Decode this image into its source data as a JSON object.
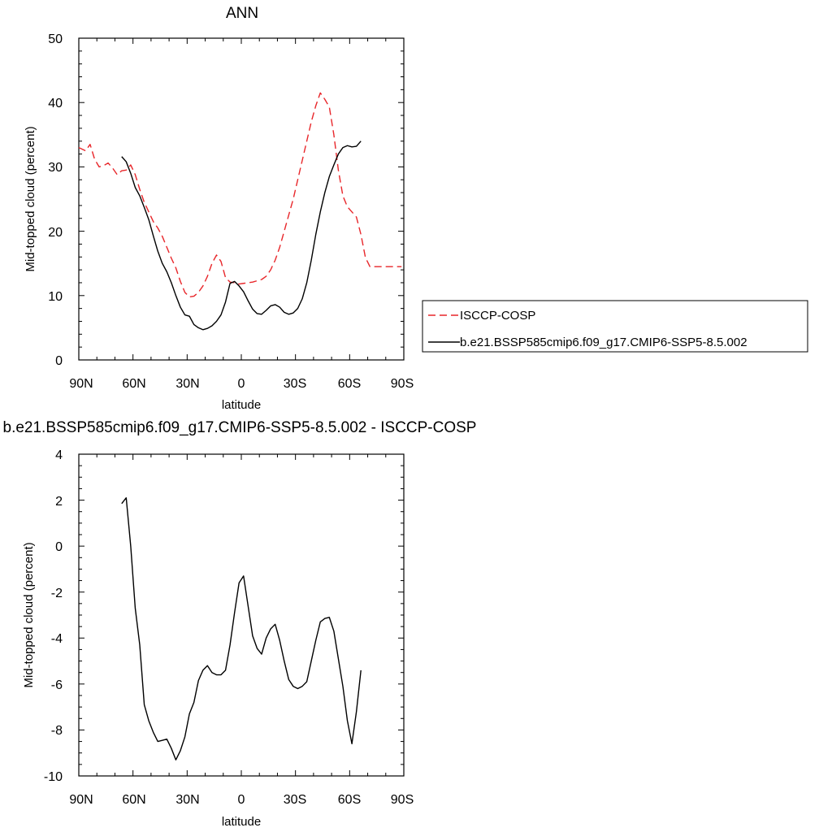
{
  "chart_data": [
    {
      "type": "line",
      "title": "ANN",
      "xlabel": "latitude",
      "ylabel": "Mid-topped cloud (percent)",
      "xlim": [
        90,
        -90
      ],
      "ylim": [
        0,
        50
      ],
      "x_ticks": [
        90,
        60,
        30,
        0,
        -30,
        -60,
        -90
      ],
      "x_tick_labels": [
        "90N",
        "60N",
        "30N",
        "0",
        "30S",
        "60S",
        "90S"
      ],
      "y_ticks": [
        0,
        10,
        20,
        30,
        40,
        50
      ],
      "y_tick_labels": [
        "0",
        "10",
        "20",
        "30",
        "40",
        "50"
      ],
      "grid": false,
      "legend": "right",
      "series": [
        {
          "name": "ISCCP-COSP",
          "color": "#e8262a",
          "dash": "dashed",
          "x": [
            90,
            86.25,
            83.75,
            81.25,
            78.75,
            76.25,
            73.75,
            71.25,
            68.75,
            66.25,
            63.75,
            61.25,
            58.75,
            56.25,
            53.75,
            51.25,
            48.75,
            46.25,
            43.75,
            41.25,
            38.75,
            36.25,
            33.75,
            31.25,
            28.75,
            26.25,
            23.75,
            21.25,
            18.75,
            16.25,
            13.75,
            11.25,
            8.75,
            6.25,
            3.75,
            1.25,
            -1.25,
            -3.75,
            -6.25,
            -8.75,
            -11.25,
            -13.75,
            -16.25,
            -18.75,
            -21.25,
            -23.75,
            -26.25,
            -28.75,
            -31.25,
            -33.75,
            -36.25,
            -38.75,
            -41.25,
            -43.75,
            -46.25,
            -48.75,
            -51.25,
            -53.75,
            -56.25,
            -58.75,
            -61.25,
            -63.75,
            -66.25,
            -68.75,
            -71.25,
            -73.75,
            -76.25,
            -78.75,
            -81.25,
            -83.75,
            -86.25,
            -88.75
          ],
          "y": [
            33.0,
            32.5,
            33.5,
            31.2,
            30.0,
            30.2,
            30.6,
            29.8,
            28.8,
            29.4,
            29.5,
            30.3,
            28.8,
            26.5,
            24.5,
            23.0,
            21.5,
            20.5,
            19.2,
            17.5,
            15.8,
            14.3,
            12.2,
            10.5,
            9.8,
            9.9,
            10.5,
            11.5,
            13.0,
            15.0,
            16.3,
            15.3,
            12.8,
            12.1,
            12.0,
            11.8,
            11.9,
            12.0,
            12.1,
            12.3,
            12.5,
            13.0,
            14.0,
            15.5,
            17.5,
            20.0,
            22.5,
            25.0,
            28.0,
            31.0,
            34.0,
            37.0,
            39.5,
            41.5,
            40.5,
            39.3,
            35.0,
            29.5,
            25.5,
            23.8,
            23.0,
            22.2,
            19.5,
            15.9,
            14.5,
            14.5,
            14.5,
            14.5,
            14.5,
            14.5,
            14.5,
            14.5
          ]
        },
        {
          "name": "b.e21.BSSP585cmip6.f09_g17.CMIP6-SSP5-8.5.002",
          "color": "#000000",
          "dash": "solid",
          "x": [
            66.25,
            63.75,
            61.25,
            58.75,
            56.25,
            53.75,
            51.25,
            48.75,
            46.25,
            43.75,
            41.25,
            38.75,
            36.25,
            33.75,
            31.25,
            28.75,
            26.25,
            23.75,
            21.25,
            18.75,
            16.25,
            13.75,
            11.25,
            8.75,
            6.25,
            3.75,
            1.25,
            -1.25,
            -3.75,
            -6.25,
            -8.75,
            -11.25,
            -13.75,
            -16.25,
            -18.75,
            -21.25,
            -23.75,
            -26.25,
            -28.75,
            -31.25,
            -33.75,
            -36.25,
            -38.75,
            -41.25,
            -43.75,
            -46.25,
            -48.75,
            -51.25,
            -53.75,
            -56.25,
            -58.75,
            -61.25,
            -63.75,
            -66.25
          ],
          "y": [
            31.6,
            30.8,
            29.0,
            26.8,
            25.5,
            23.7,
            21.8,
            19.3,
            16.9,
            15.0,
            13.7,
            12.0,
            10.0,
            8.2,
            7.0,
            6.8,
            5.5,
            5.0,
            4.7,
            4.9,
            5.3,
            6.0,
            7.0,
            9.0,
            11.9,
            12.2,
            11.5,
            10.6,
            9.2,
            7.9,
            7.2,
            7.1,
            7.7,
            8.4,
            8.6,
            8.2,
            7.4,
            7.1,
            7.3,
            8.0,
            9.5,
            12.0,
            15.5,
            19.5,
            23.0,
            26.0,
            28.5,
            30.3,
            32.0,
            33.0,
            33.3,
            33.1,
            33.2,
            34.0
          ]
        }
      ]
    },
    {
      "type": "line",
      "title": "b.e21.BSSP585cmip6.f09_g17.CMIP6-SSP5-8.5.002 - ISCCP-COSP",
      "xlabel": "latitude",
      "ylabel": "Mid-topped cloud (percent)",
      "xlim": [
        90,
        -90
      ],
      "ylim": [
        -10,
        4
      ],
      "x_ticks": [
        90,
        60,
        30,
        0,
        -30,
        -60,
        -90
      ],
      "x_tick_labels": [
        "90N",
        "60N",
        "30N",
        "0",
        "30S",
        "60S",
        "90S"
      ],
      "y_ticks": [
        -10,
        -8,
        -6,
        -4,
        -2,
        0,
        2,
        4
      ],
      "y_tick_labels": [
        "-10",
        "-8",
        "-6",
        "-4",
        "-2",
        "0",
        "2",
        "4"
      ],
      "grid": false,
      "series": [
        {
          "color": "#000000",
          "dash": "solid",
          "x": [
            66.25,
            63.75,
            61.25,
            58.75,
            56.25,
            53.75,
            51.25,
            48.75,
            46.25,
            43.75,
            41.25,
            38.75,
            36.25,
            33.75,
            31.25,
            28.75,
            26.25,
            23.75,
            21.25,
            18.75,
            16.25,
            13.75,
            11.25,
            8.75,
            6.25,
            3.75,
            1.25,
            -1.25,
            -3.75,
            -6.25,
            -8.75,
            -11.25,
            -13.75,
            -16.25,
            -18.75,
            -21.25,
            -23.75,
            -26.25,
            -28.75,
            -31.25,
            -33.75,
            -36.25,
            -38.75,
            -41.25,
            -43.75,
            -46.25,
            -48.75,
            -51.25,
            -53.75,
            -56.25,
            -58.75,
            -61.25,
            -63.75,
            -66.25
          ],
          "y": [
            1.85,
            2.1,
            0.0,
            -2.7,
            -4.3,
            -6.9,
            -7.6,
            -8.1,
            -8.5,
            -8.45,
            -8.4,
            -8.8,
            -9.3,
            -8.9,
            -8.3,
            -7.3,
            -6.8,
            -5.85,
            -5.4,
            -5.2,
            -5.5,
            -5.6,
            -5.6,
            -5.4,
            -4.3,
            -2.9,
            -1.6,
            -1.3,
            -2.6,
            -3.9,
            -4.45,
            -4.7,
            -4.0,
            -3.6,
            -3.4,
            -4.1,
            -5.0,
            -5.8,
            -6.1,
            -6.2,
            -6.1,
            -5.9,
            -5.0,
            -4.1,
            -3.3,
            -3.15,
            -3.1,
            -3.7,
            -4.9,
            -6.1,
            -7.6,
            -8.6,
            -7.2,
            -5.4
          ]
        }
      ]
    }
  ]
}
